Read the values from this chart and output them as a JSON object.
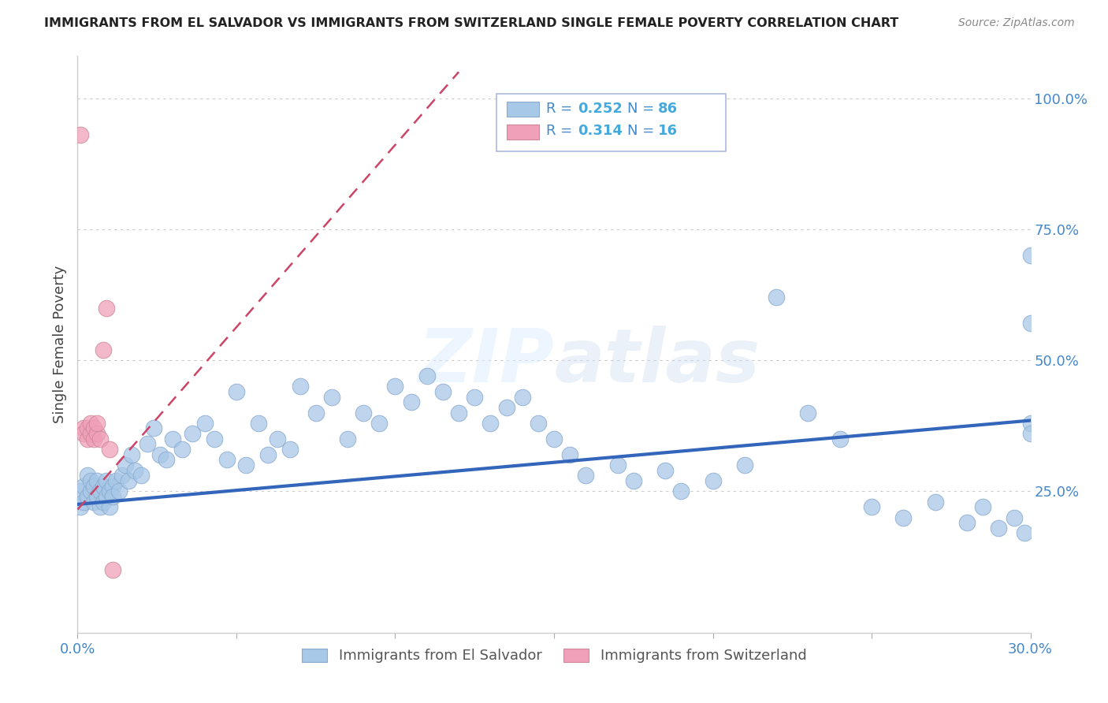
{
  "title": "IMMIGRANTS FROM EL SALVADOR VS IMMIGRANTS FROM SWITZERLAND SINGLE FEMALE POVERTY CORRELATION CHART",
  "source": "Source: ZipAtlas.com",
  "ylabel": "Single Female Poverty",
  "xlim": [
    0.0,
    0.3
  ],
  "ylim": [
    -0.02,
    1.08
  ],
  "xticks": [
    0.0,
    0.05,
    0.1,
    0.15,
    0.2,
    0.25,
    0.3
  ],
  "xticklabels": [
    "0.0%",
    "",
    "",
    "",
    "",
    "",
    "30.0%"
  ],
  "ytick_positions": [
    0.0,
    0.25,
    0.5,
    0.75,
    1.0
  ],
  "ytick_labels": [
    "",
    "25.0%",
    "50.0%",
    "75.0%",
    "100.0%"
  ],
  "blue_color": "#A8C8E8",
  "pink_color": "#F0A0B8",
  "blue_line_color": "#3366BB",
  "pink_line_color": "#CC4466",
  "watermark_zip": "ZIP",
  "watermark_atlas": "atlas",
  "legend_R1": "R = ",
  "legend_V1": "0.252",
  "legend_N1_label": "N = ",
  "legend_N1_val": "86",
  "legend_R2": "R = ",
  "legend_V2": "0.314",
  "legend_N2_label": "N = ",
  "legend_N2_val": "16",
  "label_color": "#4488CC",
  "value_color": "#44AADD",
  "el_salvador_x": [
    0.001,
    0.001,
    0.002,
    0.002,
    0.003,
    0.003,
    0.004,
    0.004,
    0.005,
    0.005,
    0.006,
    0.006,
    0.007,
    0.007,
    0.008,
    0.008,
    0.009,
    0.009,
    0.01,
    0.01,
    0.011,
    0.011,
    0.012,
    0.013,
    0.014,
    0.015,
    0.016,
    0.017,
    0.018,
    0.02,
    0.022,
    0.024,
    0.026,
    0.028,
    0.03,
    0.033,
    0.036,
    0.04,
    0.043,
    0.047,
    0.05,
    0.053,
    0.057,
    0.06,
    0.063,
    0.067,
    0.07,
    0.075,
    0.08,
    0.085,
    0.09,
    0.095,
    0.1,
    0.105,
    0.11,
    0.115,
    0.12,
    0.125,
    0.13,
    0.135,
    0.14,
    0.145,
    0.15,
    0.155,
    0.16,
    0.17,
    0.175,
    0.185,
    0.19,
    0.2,
    0.21,
    0.22,
    0.23,
    0.24,
    0.25,
    0.26,
    0.27,
    0.28,
    0.285,
    0.29,
    0.295,
    0.298,
    0.3,
    0.3,
    0.3,
    0.3
  ],
  "el_salvador_y": [
    0.22,
    0.25,
    0.23,
    0.26,
    0.28,
    0.24,
    0.25,
    0.27,
    0.23,
    0.26,
    0.24,
    0.27,
    0.22,
    0.25,
    0.23,
    0.26,
    0.24,
    0.27,
    0.25,
    0.22,
    0.26,
    0.24,
    0.27,
    0.25,
    0.28,
    0.3,
    0.27,
    0.32,
    0.29,
    0.28,
    0.34,
    0.37,
    0.32,
    0.31,
    0.35,
    0.33,
    0.36,
    0.38,
    0.35,
    0.31,
    0.44,
    0.3,
    0.38,
    0.32,
    0.35,
    0.33,
    0.45,
    0.4,
    0.43,
    0.35,
    0.4,
    0.38,
    0.45,
    0.42,
    0.47,
    0.44,
    0.4,
    0.43,
    0.38,
    0.41,
    0.43,
    0.38,
    0.35,
    0.32,
    0.28,
    0.3,
    0.27,
    0.29,
    0.25,
    0.27,
    0.3,
    0.62,
    0.4,
    0.35,
    0.22,
    0.2,
    0.23,
    0.19,
    0.22,
    0.18,
    0.2,
    0.17,
    0.7,
    0.57,
    0.38,
    0.36
  ],
  "switzerland_x": [
    0.001,
    0.002,
    0.002,
    0.003,
    0.003,
    0.004,
    0.004,
    0.005,
    0.005,
    0.006,
    0.006,
    0.007,
    0.008,
    0.009,
    0.01,
    0.011
  ],
  "switzerland_y": [
    0.93,
    0.37,
    0.36,
    0.35,
    0.37,
    0.36,
    0.38,
    0.37,
    0.35,
    0.36,
    0.38,
    0.35,
    0.52,
    0.6,
    0.33,
    0.1
  ],
  "blue_trend": [
    0.0,
    0.225,
    0.3,
    0.385
  ],
  "pink_trend": [
    0.0,
    0.215,
    0.12,
    1.05
  ]
}
